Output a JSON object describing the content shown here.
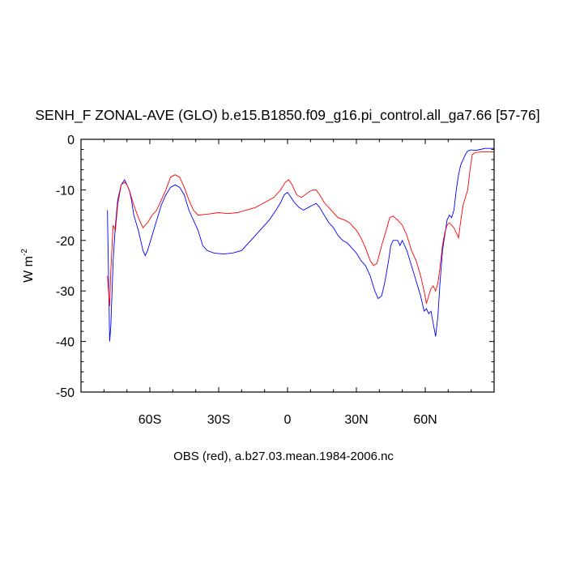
{
  "chart_data": {
    "type": "line",
    "title": "SENH_F ZONAL-AVE (GLO) b.e15.B1850.f09_g16.pi_control.all_ga7.66 [57-76]",
    "subtitle": "OBS (red), a.b27.03.mean.1984-2006.nc",
    "xlabel": "",
    "ylabel": {
      "base": "W m",
      "superscript": "-2"
    },
    "xlim": [
      -90,
      90
    ],
    "ylim": [
      -50,
      0
    ],
    "x_ticks": [
      {
        "value": -60,
        "label": "60S"
      },
      {
        "value": -30,
        "label": "30S"
      },
      {
        "value": 0,
        "label": "0"
      },
      {
        "value": 30,
        "label": "30N"
      },
      {
        "value": 60,
        "label": "60N"
      }
    ],
    "y_ticks": [
      {
        "value": 0,
        "label": "0"
      },
      {
        "value": -10,
        "label": "-10"
      },
      {
        "value": -20,
        "label": "-20"
      },
      {
        "value": -30,
        "label": "-30"
      },
      {
        "value": -40,
        "label": "-40"
      },
      {
        "value": -50,
        "label": "-50"
      }
    ],
    "grid": false,
    "legend": "none",
    "series": [
      {
        "color": "#0000ff",
        "points": [
          [
            -78.5,
            -14
          ],
          [
            -77.5,
            -40
          ],
          [
            -77,
            -37
          ],
          [
            -76,
            -24
          ],
          [
            -75,
            -17
          ],
          [
            -74,
            -12
          ],
          [
            -72.5,
            -9
          ],
          [
            -71,
            -8
          ],
          [
            -70,
            -9
          ],
          [
            -69,
            -10
          ],
          [
            -68,
            -12
          ],
          [
            -67,
            -15
          ],
          [
            -65,
            -18
          ],
          [
            -63,
            -22
          ],
          [
            -62,
            -23
          ],
          [
            -61,
            -22
          ],
          [
            -59,
            -19
          ],
          [
            -57,
            -16
          ],
          [
            -55,
            -13
          ],
          [
            -53,
            -11
          ],
          [
            -51,
            -9.5
          ],
          [
            -49,
            -9
          ],
          [
            -47,
            -9.5
          ],
          [
            -45,
            -11
          ],
          [
            -43,
            -14
          ],
          [
            -41,
            -16
          ],
          [
            -39,
            -18
          ],
          [
            -37,
            -21
          ],
          [
            -35,
            -22
          ],
          [
            -32,
            -22.5
          ],
          [
            -28,
            -22.7
          ],
          [
            -24,
            -22.5
          ],
          [
            -20,
            -22
          ],
          [
            -16,
            -20
          ],
          [
            -12,
            -18
          ],
          [
            -8,
            -16
          ],
          [
            -5,
            -14
          ],
          [
            -3,
            -12.5
          ],
          [
            -1.5,
            -11
          ],
          [
            0,
            -10.5
          ],
          [
            1.5,
            -11.5
          ],
          [
            3,
            -12.5
          ],
          [
            5,
            -13.5
          ],
          [
            7,
            -14
          ],
          [
            9,
            -13.5
          ],
          [
            11,
            -13
          ],
          [
            12.5,
            -12.7
          ],
          [
            14,
            -13.5
          ],
          [
            16,
            -15
          ],
          [
            18,
            -16.5
          ],
          [
            20,
            -17.5
          ],
          [
            22,
            -19
          ],
          [
            24,
            -20
          ],
          [
            26,
            -20.5
          ],
          [
            28,
            -21.5
          ],
          [
            30,
            -22.5
          ],
          [
            32,
            -24
          ],
          [
            34,
            -25
          ],
          [
            36,
            -27
          ],
          [
            38,
            -30
          ],
          [
            39.5,
            -31.5
          ],
          [
            41,
            -31
          ],
          [
            42.5,
            -28
          ],
          [
            44,
            -24
          ],
          [
            45,
            -21
          ],
          [
            46,
            -20
          ],
          [
            48,
            -20
          ],
          [
            49,
            -21
          ],
          [
            50,
            -20
          ],
          [
            52,
            -22
          ],
          [
            54,
            -25
          ],
          [
            56,
            -28
          ],
          [
            58,
            -31
          ],
          [
            59.5,
            -34
          ],
          [
            60.5,
            -33.5
          ],
          [
            61.5,
            -34.5
          ],
          [
            62.5,
            -34
          ],
          [
            63.5,
            -36.5
          ],
          [
            64.5,
            -39
          ],
          [
            65.5,
            -35
          ],
          [
            66.5,
            -28
          ],
          [
            67.5,
            -22
          ],
          [
            68.5,
            -19
          ],
          [
            69.5,
            -16
          ],
          [
            70.5,
            -15
          ],
          [
            71.5,
            -15.5
          ],
          [
            72.5,
            -14
          ],
          [
            73.5,
            -10
          ],
          [
            74.5,
            -7
          ],
          [
            75.5,
            -5
          ],
          [
            76.5,
            -4
          ],
          [
            77.5,
            -3
          ],
          [
            78.5,
            -2.3
          ],
          [
            80,
            -2.1
          ],
          [
            82,
            -2.2
          ],
          [
            84,
            -2
          ],
          [
            86,
            -1.8
          ],
          [
            88,
            -1.8
          ],
          [
            90,
            -1.8
          ]
        ]
      },
      {
        "color": "#ff0000",
        "points": [
          [
            -78.5,
            -27
          ],
          [
            -77.5,
            -33
          ],
          [
            -77,
            -26
          ],
          [
            -76,
            -17
          ],
          [
            -75,
            -18
          ],
          [
            -74,
            -13
          ],
          [
            -72.5,
            -9
          ],
          [
            -71,
            -8.5
          ],
          [
            -70,
            -9
          ],
          [
            -69,
            -10
          ],
          [
            -68,
            -11.5
          ],
          [
            -67,
            -13
          ],
          [
            -65,
            -15.5
          ],
          [
            -63,
            -17.5
          ],
          [
            -61,
            -16.5
          ],
          [
            -59,
            -15
          ],
          [
            -57,
            -14
          ],
          [
            -55,
            -12
          ],
          [
            -53,
            -10
          ],
          [
            -51,
            -7.5
          ],
          [
            -49,
            -7
          ],
          [
            -47,
            -7.5
          ],
          [
            -45,
            -9.5
          ],
          [
            -43,
            -12
          ],
          [
            -41,
            -14
          ],
          [
            -39,
            -15
          ],
          [
            -35,
            -14.8
          ],
          [
            -30,
            -14.5
          ],
          [
            -26,
            -14.7
          ],
          [
            -22,
            -14.5
          ],
          [
            -18,
            -14
          ],
          [
            -14,
            -13.5
          ],
          [
            -10,
            -12.5
          ],
          [
            -6,
            -11.5
          ],
          [
            -3,
            -10
          ],
          [
            -1,
            -8.5
          ],
          [
            0.5,
            -8
          ],
          [
            2,
            -9
          ],
          [
            4,
            -11
          ],
          [
            6,
            -11.5
          ],
          [
            9,
            -10.5
          ],
          [
            11,
            -10
          ],
          [
            12.5,
            -10
          ],
          [
            14,
            -11
          ],
          [
            16,
            -12.5
          ],
          [
            19,
            -14
          ],
          [
            22,
            -15.5
          ],
          [
            25,
            -16
          ],
          [
            27,
            -16.5
          ],
          [
            30,
            -18
          ],
          [
            32,
            -19.5
          ],
          [
            34,
            -21.5
          ],
          [
            36,
            -24
          ],
          [
            37.5,
            -25
          ],
          [
            39,
            -24.5
          ],
          [
            41,
            -21
          ],
          [
            43,
            -18
          ],
          [
            44.5,
            -15.5
          ],
          [
            46,
            -15.2
          ],
          [
            48,
            -16
          ],
          [
            50,
            -17
          ],
          [
            52,
            -19
          ],
          [
            54,
            -22
          ],
          [
            56,
            -24
          ],
          [
            58,
            -27
          ],
          [
            59.5,
            -30
          ],
          [
            60.5,
            -32.5
          ],
          [
            61.5,
            -31
          ],
          [
            62.5,
            -29.5
          ],
          [
            63.5,
            -29
          ],
          [
            64.5,
            -30
          ],
          [
            65.5,
            -28.5
          ],
          [
            66.5,
            -25
          ],
          [
            67.5,
            -21
          ],
          [
            68.5,
            -18.5
          ],
          [
            69.5,
            -17
          ],
          [
            70.5,
            -16.5
          ],
          [
            71.5,
            -17
          ],
          [
            72.5,
            -17.5
          ],
          [
            73.5,
            -18.5
          ],
          [
            74.5,
            -19.5
          ],
          [
            75.5,
            -16
          ],
          [
            76.5,
            -13
          ],
          [
            77.5,
            -11.5
          ],
          [
            78.5,
            -10
          ],
          [
            79.5,
            -6
          ],
          [
            80.5,
            -3
          ],
          [
            82,
            -2.6
          ],
          [
            85,
            -2.5
          ],
          [
            88,
            -2.5
          ],
          [
            90,
            -2.5
          ]
        ]
      }
    ]
  }
}
